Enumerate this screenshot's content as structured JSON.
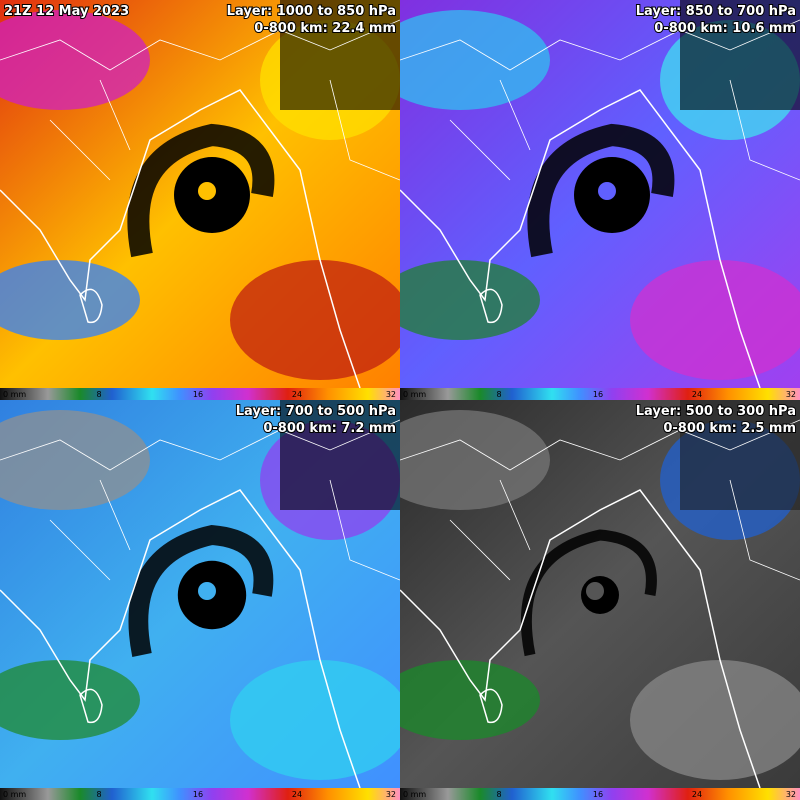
{
  "timestamp": "21Z 12 May 2023",
  "panels": [
    {
      "layer": "Layer: 1000 to 850 hPa",
      "stat": "0-800 km: 22.4 mm",
      "colorbar": [
        "0 mm",
        "8",
        "16",
        "24",
        "32"
      ]
    },
    {
      "layer": "Layer: 850 to 700 hPa",
      "stat": "0-800 km: 10.6 mm",
      "colorbar": [
        "0 mm",
        "8",
        "16",
        "24",
        "32"
      ]
    },
    {
      "layer": "Layer: 700 to 500 hPa",
      "stat": "0-800 km: 7.2 mm",
      "colorbar": [
        "0 mm",
        "8",
        "16",
        "24",
        "32"
      ]
    },
    {
      "layer": "Layer: 500 to 300 hPa",
      "stat": "0-800 km: 2.5 mm",
      "colorbar": [
        "0 mm",
        "8",
        "16",
        "24",
        "32"
      ]
    }
  ]
}
